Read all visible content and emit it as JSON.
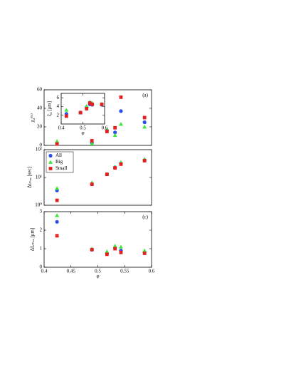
{
  "chart_data": [
    {
      "type": "scatter",
      "label": "(a)",
      "ylabel": "χ₄ᵐᵃˣ",
      "xlim": [
        0.4,
        0.6
      ],
      "ylim": [
        0,
        60
      ],
      "yticks": [
        0,
        20,
        40,
        60
      ],
      "x": [
        0.424,
        0.489,
        0.517,
        0.532,
        0.543,
        0.587
      ],
      "series": [
        {
          "color": "#2b4fe6",
          "marker": "circle",
          "values": [
            2,
            3,
            16,
            14,
            37,
            25
          ]
        },
        {
          "color": "#3ee63e",
          "marker": "triangle",
          "values": [
            4.5,
            2,
            17,
            11,
            23,
            20
          ]
        },
        {
          "color": "#e61f1f",
          "marker": "square",
          "values": [
            1.5,
            5,
            15,
            19,
            52,
            30
          ]
        }
      ]
    },
    {
      "type": "scatter",
      "xlabel": "φ",
      "ylabel": "ξ₄ [μm]",
      "xlim": [
        0.4,
        0.6
      ],
      "xticks": [
        0.4,
        0.5,
        0.6
      ],
      "ylim": [
        0,
        7
      ],
      "yticks": [
        2,
        4,
        6
      ],
      "x": [
        0.424,
        0.489,
        0.517,
        0.532,
        0.543,
        0.587
      ],
      "series": [
        {
          "color": "#2b4fe6",
          "marker": "circle",
          "values": [
            2.3,
            2.6,
            3.8,
            4.5,
            4.4,
            4.4
          ]
        },
        {
          "color": "#3ee63e",
          "marker": "triangle",
          "values": [
            3.2,
            2.6,
            4.1,
            5,
            4.8,
            4.6
          ]
        },
        {
          "color": "#e61f1f",
          "marker": "square",
          "values": [
            1.8,
            2.6,
            3.5,
            4.8,
            4.5,
            4.5
          ]
        }
      ]
    },
    {
      "type": "scatter",
      "ylabel": "Δtₘₐₓ [sec]",
      "log_y": true,
      "legend": "upper left",
      "xlim": [
        0.4,
        0.6
      ],
      "ylim": [
        1,
        100
      ],
      "yticks": [
        {
          "value": 1,
          "label": "10⁰"
        },
        {
          "value": 10,
          "label": "10¹"
        },
        {
          "value": 100,
          "label": "10²"
        }
      ],
      "x": [
        0.424,
        0.489,
        0.517,
        0.532,
        0.543,
        0.587
      ],
      "series": [
        {
          "name": "All",
          "color": "#2b4fe6",
          "marker": "circle",
          "values": [
            3.4,
            5.7,
            13,
            23,
            32,
            42
          ]
        },
        {
          "name": "Big",
          "color": "#3ee63e",
          "marker": "triangle",
          "values": [
            4.1,
            6.5,
            13,
            24,
            35,
            45
          ]
        },
        {
          "name": "Small",
          "color": "#e61f1f",
          "marker": "square",
          "values": [
            1.5,
            5.7,
            13,
            22,
            30,
            40
          ]
        }
      ]
    },
    {
      "type": "scatter",
      "label": "(c)",
      "xlabel": "φ",
      "ylabel": "ΔLₘₐₓ [μm]",
      "xlim": [
        0.4,
        0.6
      ],
      "xticks": [
        0.4,
        0.45,
        0.5,
        0.55,
        0.6
      ],
      "ylim": [
        0,
        3
      ],
      "yticks": [
        0,
        1,
        2,
        3
      ],
      "x": [
        0.424,
        0.489,
        0.517,
        0.532,
        0.543,
        0.587
      ],
      "series": [
        {
          "color": "#2b4fe6",
          "marker": "circle",
          "values": [
            2.45,
            0.95,
            0.75,
            1.05,
            0.9,
            0.8
          ]
        },
        {
          "color": "#3ee63e",
          "marker": "triangle",
          "values": [
            2.8,
            1.0,
            0.85,
            1.15,
            1.1,
            0.9
          ]
        },
        {
          "color": "#e61f1f",
          "marker": "square",
          "values": [
            1.7,
            0.95,
            0.7,
            1.0,
            0.8,
            0.75
          ]
        }
      ]
    }
  ]
}
